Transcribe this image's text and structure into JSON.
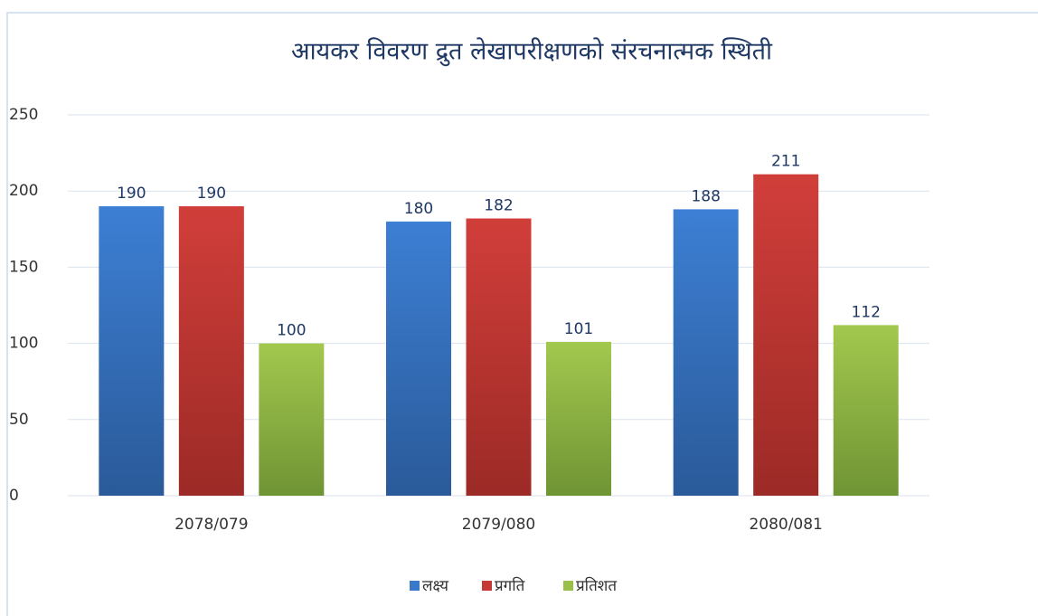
{
  "chart_data": {
    "type": "bar",
    "title": "आयकर विवरण द्रुत लेखापरीक्षणको संरचनात्मक स्थिती",
    "categories": [
      "2078/079",
      "2079/080",
      "2080/081"
    ],
    "series": [
      {
        "name": "लक्ष्य",
        "color": "#3a78c9",
        "values": [
          190,
          180,
          188
        ]
      },
      {
        "name": "प्रगति",
        "color": "#c43a36",
        "values": [
          190,
          182,
          211
        ]
      },
      {
        "name": "प्रतिशत",
        "color": "#9bc04a",
        "values": [
          100,
          101,
          112
        ]
      }
    ],
    "ylim": [
      0,
      250
    ],
    "yticks": [
      0,
      50,
      100,
      150,
      200,
      250
    ],
    "grid": true,
    "legend": "bottom"
  }
}
